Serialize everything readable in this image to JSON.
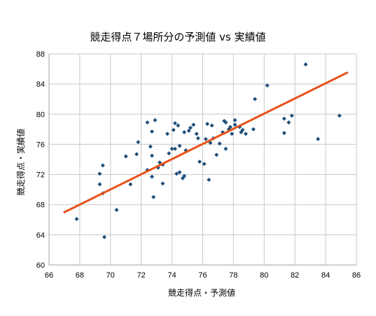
{
  "chart_data": {
    "type": "scatter",
    "title": "競走得点７場所分の予測値 vs 実績値",
    "xlabel": "競走得点・予測値",
    "ylabel": "競走得点・実績値",
    "xlim": [
      66,
      86
    ],
    "ylim": [
      60,
      88
    ],
    "xticks": [
      66,
      68,
      70,
      72,
      74,
      76,
      78,
      80,
      82,
      84,
      86
    ],
    "yticks": [
      60,
      64,
      68,
      72,
      76,
      80,
      84,
      88
    ],
    "grid": true,
    "legend": "none",
    "colors": {
      "points": "#1f4e79",
      "trendline": "#e8531c",
      "grid": "#c8c8c8",
      "axis": "#a0a0a0"
    },
    "points": [
      [
        67.8,
        66.1
      ],
      [
        69.3,
        72.1
      ],
      [
        69.3,
        70.7
      ],
      [
        69.5,
        69.5
      ],
      [
        69.5,
        73.2
      ],
      [
        69.6,
        63.7
      ],
      [
        70.4,
        67.3
      ],
      [
        71.0,
        74.4
      ],
      [
        71.3,
        70.7
      ],
      [
        71.7,
        74.7
      ],
      [
        71.8,
        76.3
      ],
      [
        72.4,
        72.6
      ],
      [
        72.4,
        78.9
      ],
      [
        72.6,
        75.7
      ],
      [
        72.7,
        77.7
      ],
      [
        72.7,
        74.5
      ],
      [
        72.7,
        71.7
      ],
      [
        72.8,
        69.0
      ],
      [
        72.9,
        79.2
      ],
      [
        73.1,
        72.9
      ],
      [
        73.2,
        73.6
      ],
      [
        73.4,
        73.3
      ],
      [
        73.4,
        70.8
      ],
      [
        73.7,
        77.4
      ],
      [
        73.8,
        74.8
      ],
      [
        74.0,
        75.4
      ],
      [
        74.1,
        77.9
      ],
      [
        74.2,
        78.8
      ],
      [
        74.2,
        75.4
      ],
      [
        74.3,
        72.1
      ],
      [
        74.4,
        78.5
      ],
      [
        74.5,
        75.8
      ],
      [
        74.5,
        72.3
      ],
      [
        74.7,
        71.5
      ],
      [
        74.8,
        71.8
      ],
      [
        74.8,
        77.6
      ],
      [
        74.9,
        75.2
      ],
      [
        75.1,
        77.8
      ],
      [
        75.2,
        78.2
      ],
      [
        75.4,
        78.6
      ],
      [
        75.6,
        77.4
      ],
      [
        75.7,
        76.8
      ],
      [
        75.8,
        73.7
      ],
      [
        76.1,
        73.4
      ],
      [
        76.2,
        76.7
      ],
      [
        76.3,
        78.7
      ],
      [
        76.4,
        71.3
      ],
      [
        76.5,
        76.2
      ],
      [
        76.6,
        78.5
      ],
      [
        76.7,
        76.8
      ],
      [
        76.9,
        74.6
      ],
      [
        77.1,
        76.1
      ],
      [
        77.3,
        77.6
      ],
      [
        77.4,
        79.1
      ],
      [
        77.5,
        75.4
      ],
      [
        77.5,
        78.9
      ],
      [
        77.7,
        78.0
      ],
      [
        77.8,
        78.3
      ],
      [
        77.9,
        77.4
      ],
      [
        78.1,
        78.6
      ],
      [
        78.1,
        79.2
      ],
      [
        78.4,
        78.3
      ],
      [
        78.5,
        77.6
      ],
      [
        78.6,
        77.9
      ],
      [
        78.8,
        77.4
      ],
      [
        79.3,
        78.0
      ],
      [
        79.4,
        82.0
      ],
      [
        80.2,
        83.8
      ],
      [
        81.3,
        79.4
      ],
      [
        81.3,
        77.5
      ],
      [
        81.6,
        78.9
      ],
      [
        81.8,
        79.8
      ],
      [
        82.7,
        86.6
      ],
      [
        83.5,
        76.7
      ],
      [
        84.9,
        79.8
      ]
    ],
    "trendline": {
      "x": [
        67.0,
        85.4
      ],
      "y": [
        67.0,
        85.5
      ]
    }
  }
}
